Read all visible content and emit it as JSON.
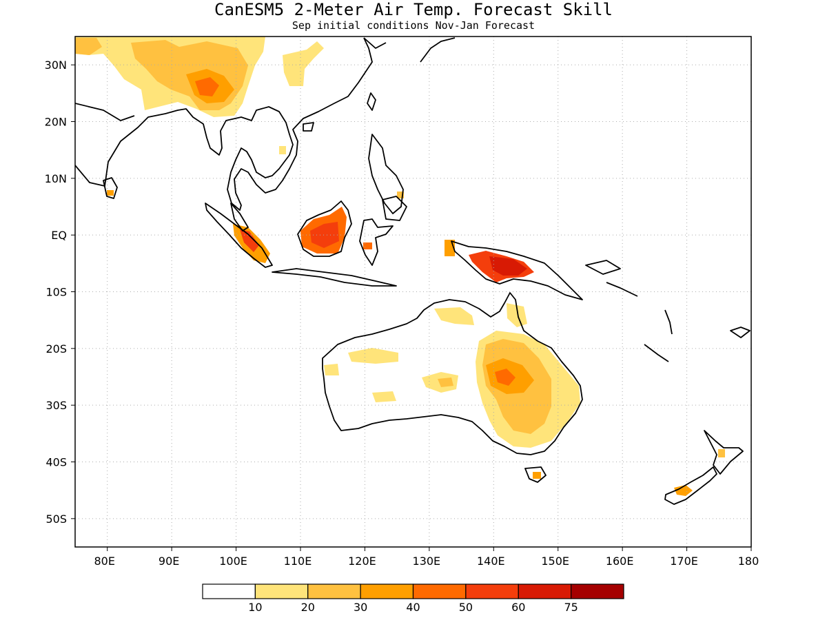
{
  "title": "CanESM5 2-Meter Air Temp. Forecast Skill",
  "subtitle": "Sep initial conditions  Nov-Jan Forecast",
  "map": {
    "lon_range": [
      75,
      180
    ],
    "lat_range": [
      -55,
      35
    ],
    "grid": true,
    "lat_ticks": [
      {
        "value": 30,
        "label": "30N"
      },
      {
        "value": 20,
        "label": "20N"
      },
      {
        "value": 10,
        "label": "10N"
      },
      {
        "value": 0,
        "label": "EQ"
      },
      {
        "value": -10,
        "label": "10S"
      },
      {
        "value": -20,
        "label": "20S"
      },
      {
        "value": -30,
        "label": "30S"
      },
      {
        "value": -40,
        "label": "40S"
      },
      {
        "value": -50,
        "label": "50S"
      }
    ],
    "lon_ticks": [
      {
        "value": 80,
        "label": "80E"
      },
      {
        "value": 90,
        "label": "90E"
      },
      {
        "value": 100,
        "label": "100E"
      },
      {
        "value": 110,
        "label": "110E"
      },
      {
        "value": 120,
        "label": "120E"
      },
      {
        "value": 130,
        "label": "130E"
      },
      {
        "value": 140,
        "label": "140E"
      },
      {
        "value": 150,
        "label": "150E"
      },
      {
        "value": 160,
        "label": "160E"
      },
      {
        "value": 170,
        "label": "170E"
      },
      {
        "value": 180,
        "label": "180"
      }
    ]
  },
  "colorbar": {
    "colors": [
      "#ffffff",
      "#ffe47a",
      "#ffc140",
      "#ff9f00",
      "#ff6a00",
      "#f43e0c",
      "#d81a04",
      "#a50000"
    ],
    "labels": [
      "10",
      "20",
      "30",
      "40",
      "50",
      "60",
      "75"
    ]
  },
  "chart_data": {
    "type": "heatmap",
    "title": "CanESM5 2-Meter Air Temp. Forecast Skill",
    "subtitle": "Sep initial conditions  Nov-Jan Forecast",
    "xlim": [
      75,
      180
    ],
    "ylim": [
      -55,
      35
    ],
    "levels": [
      10,
      20,
      30,
      40,
      50,
      60,
      75
    ],
    "regions": [
      {
        "lon": [
          85,
          100
        ],
        "lat": [
          27,
          35
        ],
        "level": 10
      },
      {
        "lon": [
          95,
          103
        ],
        "lat": [
          21,
          34
        ],
        "level": 20
      },
      {
        "lon": [
          97,
          101
        ],
        "lat": [
          25,
          28
        ],
        "level": 40
      },
      {
        "lon": [
          110,
          117
        ],
        "lat": [
          -3,
          3
        ],
        "level": 40
      },
      {
        "lon": [
          112,
          115
        ],
        "lat": [
          -2,
          1
        ],
        "level": 50
      },
      {
        "lon": [
          138,
          146
        ],
        "lat": [
          -8,
          -4
        ],
        "level": 50
      },
      {
        "lon": [
          141,
          145
        ],
        "lat": [
          -7,
          -4
        ],
        "level": 60
      },
      {
        "lon": [
          138,
          150
        ],
        "lat": [
          -36,
          -17
        ],
        "level": 20
      },
      {
        "lon": [
          140,
          146
        ],
        "lat": [
          -28,
          -23
        ],
        "level": 30
      },
      {
        "lon": [
          113,
          150
        ],
        "lat": [
          -33,
          -15
        ],
        "level": 10
      },
      {
        "lon": [
          167,
          171
        ],
        "lat": [
          -46,
          -44
        ],
        "level": 30
      }
    ]
  }
}
